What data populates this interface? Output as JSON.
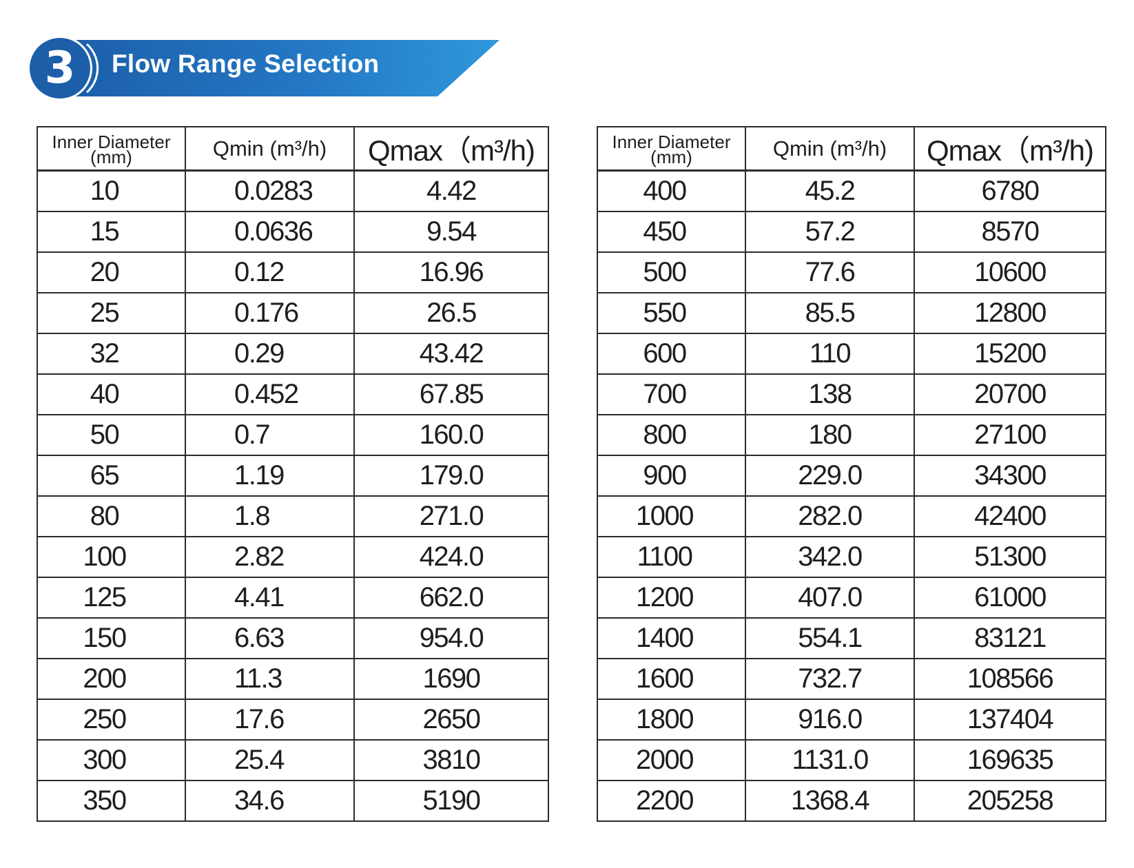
{
  "header": {
    "number": "3",
    "title": "Flow Range Selection",
    "colors": {
      "dark_blue": "#1c5fa8",
      "light_blue": "#2f97db"
    }
  },
  "columns": {
    "diameter": "Inner Diameter",
    "diameter_unit": "(mm)",
    "qmin": "Qmin (m³/h)",
    "qmax": "Qmax（m³/h)"
  },
  "left_table": [
    [
      "10",
      "0.0283",
      "4.42"
    ],
    [
      "15",
      "0.0636",
      "9.54"
    ],
    [
      "20",
      "0.12",
      "16.96"
    ],
    [
      "25",
      "0.176",
      "26.5"
    ],
    [
      "32",
      "0.29",
      "43.42"
    ],
    [
      "40",
      "0.452",
      "67.85"
    ],
    [
      "50",
      "0.7",
      "160.0"
    ],
    [
      "65",
      "1.19",
      "179.0"
    ],
    [
      "80",
      "1.8",
      "271.0"
    ],
    [
      "100",
      "2.82",
      "424.0"
    ],
    [
      "125",
      "4.41",
      "662.0"
    ],
    [
      "150",
      "6.63",
      "954.0"
    ],
    [
      "200",
      "11.3",
      "1690"
    ],
    [
      "250",
      "17.6",
      "2650"
    ],
    [
      "300",
      "25.4",
      "3810"
    ],
    [
      "350",
      "34.6",
      "5190"
    ]
  ],
  "right_table": [
    [
      "400",
      "45.2",
      "6780"
    ],
    [
      "450",
      "57.2",
      "8570"
    ],
    [
      "500",
      "77.6",
      "10600"
    ],
    [
      "550",
      "85.5",
      "12800"
    ],
    [
      "600",
      "110",
      "15200"
    ],
    [
      "700",
      "138",
      "20700"
    ],
    [
      "800",
      "180",
      "27100"
    ],
    [
      "900",
      "229.0",
      "34300"
    ],
    [
      "1000",
      "282.0",
      "42400"
    ],
    [
      "1100",
      "342.0",
      "51300"
    ],
    [
      "1200",
      "407.0",
      "61000"
    ],
    [
      "1400",
      "554.1",
      "83121"
    ],
    [
      "1600",
      "732.7",
      "108566"
    ],
    [
      "1800",
      "916.0",
      "137404"
    ],
    [
      "2000",
      "1131.0",
      "169635"
    ],
    [
      "2200",
      "1368.4",
      "205258"
    ]
  ]
}
